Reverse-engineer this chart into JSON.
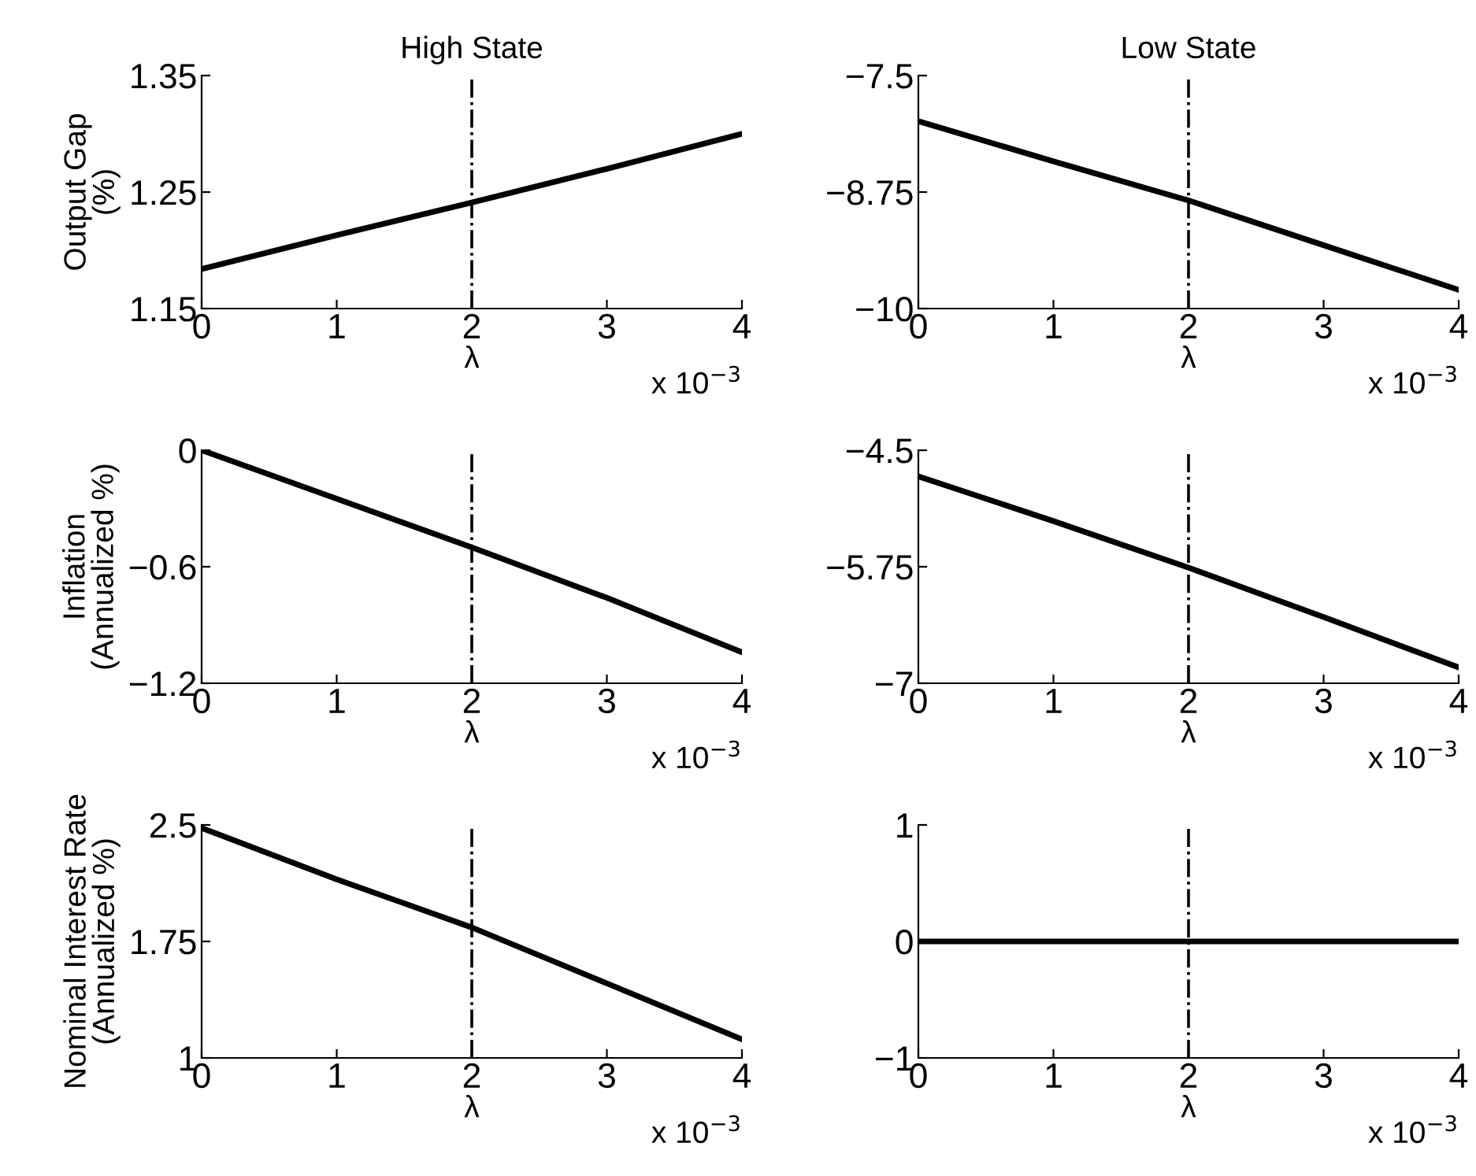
{
  "chart_data": [
    {
      "type": "line",
      "title": "High State",
      "ylabel": "Output Gap\n(%)",
      "xlabel": "λ",
      "x": [
        0,
        1,
        2,
        3,
        4
      ],
      "series": [
        {
          "color": "#000000",
          "values": [
            1.184,
            1.213,
            1.241,
            1.27,
            1.3
          ]
        }
      ],
      "xlim": [
        0,
        4
      ],
      "xticks": [
        0,
        1,
        2,
        3,
        4
      ],
      "ylim": [
        1.15,
        1.35
      ],
      "yticks": [
        1.15,
        1.25,
        1.35
      ],
      "ref_lines": [
        {
          "axis": "x",
          "value": 2,
          "color": "#000000",
          "line_style": "dashdot"
        }
      ],
      "annotations": [
        "x 10$^{−3}$"
      ],
      "grid": false,
      "marker": "none",
      "line_style": "solid"
    },
    {
      "type": "line",
      "title": "Low State",
      "xlabel": "λ",
      "x": [
        0,
        1,
        2,
        3,
        4
      ],
      "series": [
        {
          "color": "#000000",
          "values": [
            -7.99,
            -8.42,
            -8.84,
            -9.32,
            -9.8
          ]
        }
      ],
      "xlim": [
        0,
        4
      ],
      "xticks": [
        0,
        1,
        2,
        3,
        4
      ],
      "ylim": [
        -10,
        -7.5
      ],
      "yticks": [
        -10,
        -8.75,
        -7.5
      ],
      "ref_lines": [
        {
          "axis": "x",
          "value": 2,
          "color": "#000000",
          "line_style": "dashdot"
        }
      ],
      "annotations": [
        "x 10$^{−3}$"
      ],
      "grid": false,
      "marker": "none",
      "line_style": "solid"
    },
    {
      "type": "line",
      "ylabel": "Inflation\n(Annualized %)",
      "xlabel": "λ",
      "x": [
        0,
        1,
        2,
        3,
        4
      ],
      "series": [
        {
          "color": "#000000",
          "values": [
            0,
            -0.25,
            -0.5,
            -0.76,
            -1.04
          ]
        }
      ],
      "xlim": [
        0,
        4
      ],
      "xticks": [
        0,
        1,
        2,
        3,
        4
      ],
      "ylim": [
        -1.2,
        0
      ],
      "yticks": [
        -1.2,
        -0.6,
        0
      ],
      "ref_lines": [
        {
          "axis": "x",
          "value": 2,
          "color": "#000000",
          "line_style": "dashdot"
        }
      ],
      "annotations": [
        "x 10$^{−3}$"
      ],
      "grid": false,
      "marker": "none",
      "line_style": "solid"
    },
    {
      "type": "line",
      "xlabel": "λ",
      "x": [
        0,
        1,
        2,
        3,
        4
      ],
      "series": [
        {
          "color": "#000000",
          "values": [
            -4.78,
            -5.26,
            -5.76,
            -6.29,
            -6.83
          ]
        }
      ],
      "xlim": [
        0,
        4
      ],
      "xticks": [
        0,
        1,
        2,
        3,
        4
      ],
      "ylim": [
        -7,
        -4.5
      ],
      "yticks": [
        -7,
        -5.75,
        -4.5
      ],
      "ref_lines": [
        {
          "axis": "x",
          "value": 2,
          "color": "#000000",
          "line_style": "dashdot"
        }
      ],
      "annotations": [
        "x 10$^{−3}$"
      ],
      "grid": false,
      "marker": "none",
      "line_style": "solid"
    },
    {
      "type": "line",
      "ylabel": "Nominal Interest Rate\n(Annualized %)",
      "xlabel": "λ",
      "x": [
        0,
        1,
        2,
        3,
        4
      ],
      "series": [
        {
          "color": "#000000",
          "values": [
            2.48,
            2.15,
            1.84,
            1.48,
            1.12
          ]
        }
      ],
      "xlim": [
        0,
        4
      ],
      "xticks": [
        0,
        1,
        2,
        3,
        4
      ],
      "ylim": [
        1,
        2.5
      ],
      "yticks": [
        1,
        1.75,
        2.5
      ],
      "ref_lines": [
        {
          "axis": "x",
          "value": 2,
          "color": "#000000",
          "line_style": "dashdot"
        }
      ],
      "annotations": [
        "x 10$^{−3}$"
      ],
      "grid": false,
      "marker": "none",
      "line_style": "solid"
    },
    {
      "type": "line",
      "xlabel": "λ",
      "x": [
        0,
        1,
        2,
        3,
        4
      ],
      "series": [
        {
          "color": "#000000",
          "values": [
            0,
            0,
            0,
            0,
            0
          ]
        }
      ],
      "xlim": [
        0,
        4
      ],
      "xticks": [
        0,
        1,
        2,
        3,
        4
      ],
      "ylim": [
        -1,
        1
      ],
      "yticks": [
        -1,
        0,
        1
      ],
      "ref_lines": [
        {
          "axis": "x",
          "value": 2,
          "color": "#000000",
          "line_style": "dashdot"
        }
      ],
      "annotations": [
        "x 10$^{−3}$"
      ],
      "grid": false,
      "marker": "none",
      "line_style": "solid"
    }
  ]
}
